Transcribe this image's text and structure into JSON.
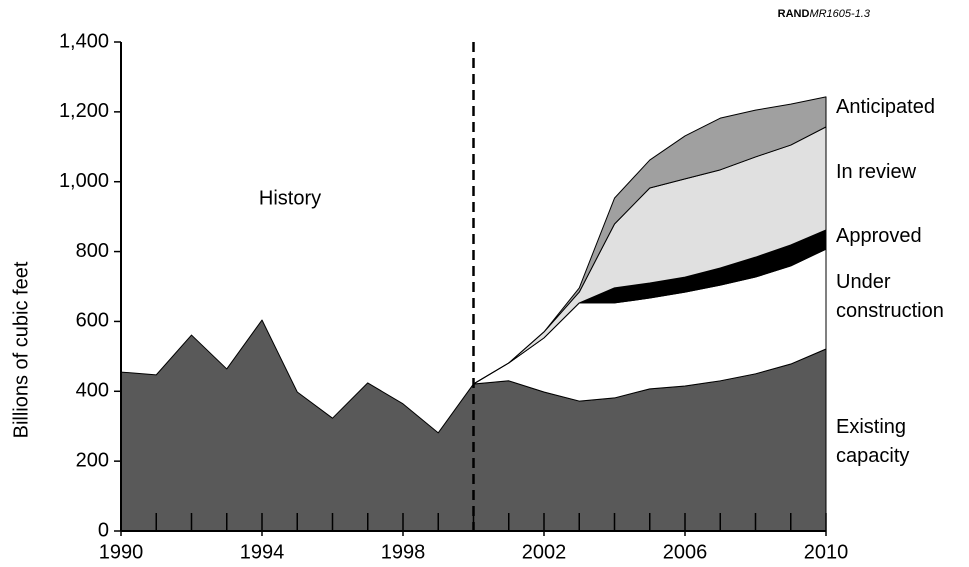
{
  "chart_data": {
    "type": "stacked_area",
    "source_prefix": "RAND",
    "source_id": "MR1605-1.3",
    "ylabel": "Billions of cubic feet",
    "annotation": "History",
    "divider_x": 2000,
    "x": [
      1990,
      1991,
      1992,
      1993,
      1994,
      1995,
      1996,
      1997,
      1998,
      1999,
      2000,
      2001,
      2002,
      2003,
      2004,
      2005,
      2006,
      2007,
      2008,
      2009,
      2010
    ],
    "series": [
      {
        "name": "Existing capacity",
        "color": "#595959",
        "values": [
          455,
          447,
          561,
          464,
          604,
          398,
          323,
          424,
          364,
          281,
          421,
          430,
          398,
          372,
          381,
          407,
          415,
          430,
          450,
          478,
          521
        ]
      },
      {
        "name": "Under construction",
        "color": "#ffffff",
        "values": [
          null,
          null,
          null,
          null,
          null,
          null,
          null,
          null,
          null,
          null,
          0,
          51,
          155,
          281,
          272,
          260,
          269,
          274,
          277,
          281,
          286
        ]
      },
      {
        "name": "Approved",
        "color": "#000000",
        "values": [
          null,
          null,
          null,
          null,
          null,
          null,
          null,
          null,
          null,
          null,
          0,
          0,
          0,
          0,
          43,
          43,
          43,
          49,
          57,
          60,
          55
        ]
      },
      {
        "name": "In review",
        "color": "#e0e0e0",
        "values": [
          null,
          null,
          null,
          null,
          null,
          null,
          null,
          null,
          null,
          null,
          0,
          0,
          17,
          31,
          183,
          272,
          281,
          281,
          287,
          286,
          295
        ]
      },
      {
        "name": "Anticipated",
        "color": "#a0a0a0",
        "values": [
          null,
          null,
          null,
          null,
          null,
          null,
          null,
          null,
          null,
          null,
          0,
          0,
          0,
          12,
          74,
          80,
          123,
          148,
          134,
          117,
          86
        ]
      }
    ],
    "xlim": [
      1990,
      2010
    ],
    "xticks": [
      1990,
      1994,
      1998,
      2002,
      2006,
      2010
    ],
    "ylim": [
      0,
      1400
    ],
    "yticks": [
      0,
      200,
      400,
      600,
      800,
      {
        "value": 1000,
        "label": "1,000"
      },
      {
        "value": 1200,
        "label": "1,200"
      },
      {
        "value": 1400,
        "label": "1,400"
      }
    ]
  }
}
